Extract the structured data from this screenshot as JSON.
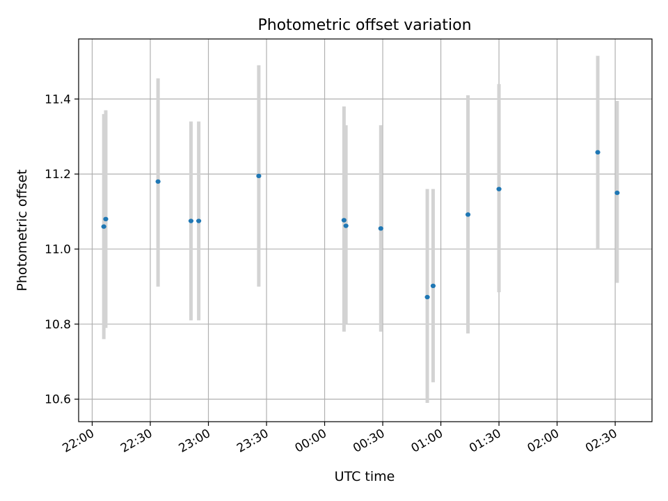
{
  "chart_data": {
    "type": "scatter",
    "title": "Photometric offset variation",
    "xlabel": "UTC time",
    "ylabel": "Photometric offset",
    "x_unit": "UTC time (HH:MM)",
    "xlim": [
      "21:53",
      "26:49"
    ],
    "ylim": [
      10.54,
      11.56
    ],
    "x_ticks": [
      "22:00",
      "22:30",
      "23:00",
      "23:30",
      "00:00",
      "00:30",
      "01:00",
      "01:30",
      "02:00",
      "02:30"
    ],
    "x_tick_positions": [
      "22:00",
      "22:30",
      "23:00",
      "23:30",
      "24:00",
      "24:30",
      "25:00",
      "25:30",
      "26:00",
      "26:30"
    ],
    "y_ticks": [
      10.6,
      10.8,
      11.0,
      11.2,
      11.4
    ],
    "y_tick_labels": [
      "10.6",
      "10.8",
      "11.0",
      "11.2",
      "11.4"
    ],
    "grid": true,
    "marker_color": "#1f77b4",
    "errorbar_color": "#d3d3d3",
    "points": [
      {
        "x": "22:06",
        "y": 11.06,
        "y_err": [
          10.76,
          11.36
        ]
      },
      {
        "x": "22:07",
        "y": 11.08,
        "y_err": [
          10.79,
          11.37
        ]
      },
      {
        "x": "22:34",
        "y": 11.18,
        "y_err": [
          10.9,
          11.455
        ]
      },
      {
        "x": "22:51",
        "y": 11.075,
        "y_err": [
          10.81,
          11.34
        ]
      },
      {
        "x": "22:55",
        "y": 11.075,
        "y_err": [
          10.81,
          11.34
        ]
      },
      {
        "x": "23:26",
        "y": 11.195,
        "y_err": [
          10.9,
          11.49
        ]
      },
      {
        "x": "24:10",
        "y": 11.077,
        "y_err": [
          10.78,
          11.38
        ]
      },
      {
        "x": "24:11",
        "y": 11.062,
        "y_err": [
          10.8,
          11.33
        ]
      },
      {
        "x": "24:29",
        "y": 11.055,
        "y_err": [
          10.78,
          11.33
        ]
      },
      {
        "x": "24:53",
        "y": 10.872,
        "y_err": [
          10.59,
          11.16
        ]
      },
      {
        "x": "24:56",
        "y": 10.902,
        "y_err": [
          10.645,
          11.16
        ]
      },
      {
        "x": "25:14",
        "y": 11.092,
        "y_err": [
          10.775,
          11.41
        ]
      },
      {
        "x": "25:30",
        "y": 11.16,
        "y_err": [
          10.885,
          11.44
        ]
      },
      {
        "x": "26:21",
        "y": 11.258,
        "y_err": [
          11.0,
          11.515
        ]
      },
      {
        "x": "26:31",
        "y": 11.15,
        "y_err": [
          10.91,
          11.395
        ]
      }
    ]
  }
}
